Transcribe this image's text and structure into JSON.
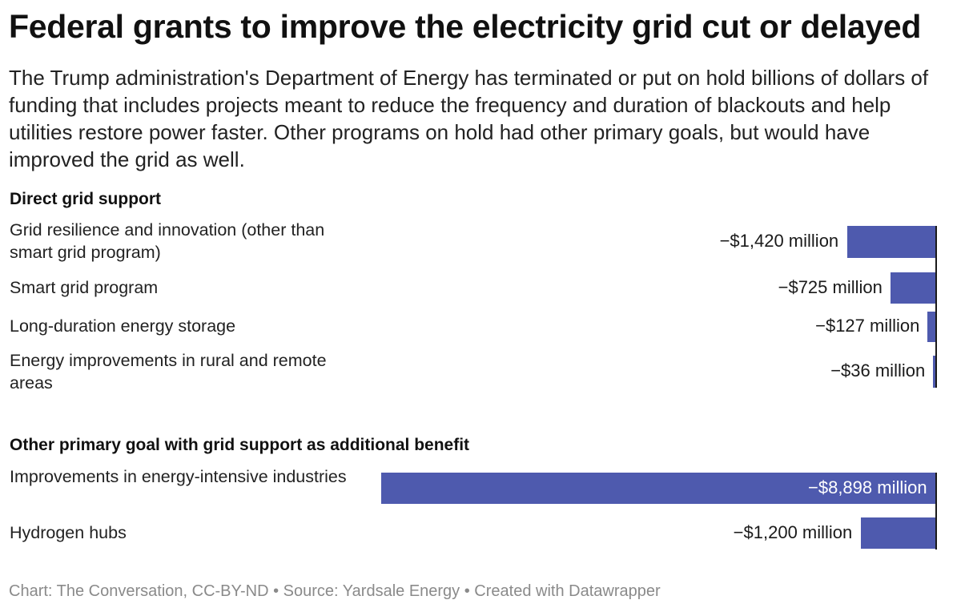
{
  "header": {
    "title": "Federal grants to improve the electricity grid cut or delayed",
    "subtitle": "The Trump administration's Department of Energy has terminated or put on hold billions of dollars of funding that includes projects meant to reduce the frequency and duration of blackouts and help utilities restore power faster. Other programs on hold had other primary goals, but would have improved the grid as well."
  },
  "chart_data": {
    "type": "bar",
    "orientation": "horizontal",
    "unit": "million USD",
    "bar_color": "#4e5aae",
    "groups": [
      {
        "name": "Direct grid support",
        "rows": [
          {
            "label": "Grid resilience and innovation (other than smart grid program)",
            "value": -1420,
            "value_label": "−$1,420 million"
          },
          {
            "label": "Smart grid program",
            "value": -725,
            "value_label": "−$725 million"
          },
          {
            "label": "Long-duration energy storage",
            "value": -127,
            "value_label": "−$127 million"
          },
          {
            "label": "Energy improvements in rural and remote areas",
            "value": -36,
            "value_label": "−$36 million"
          }
        ]
      },
      {
        "name": "Other primary goal with grid support as additional benefit",
        "rows": [
          {
            "label": "Improvements in energy-intensive industries",
            "value": -8898,
            "value_label": "−$8,898 million"
          },
          {
            "label": "Hydrogen hubs",
            "value": -1200,
            "value_label": "−$1,200 million"
          }
        ]
      }
    ],
    "xlim": [
      -8898,
      0
    ]
  },
  "footer": {
    "text": "Chart: The Conversation, CC-BY-ND • Source: Yardsale Energy • Created with Datawrapper"
  }
}
